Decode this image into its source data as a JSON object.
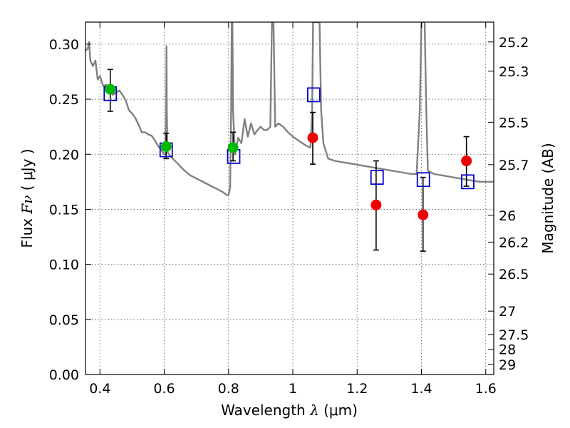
{
  "chart_data": {
    "type": "scatter",
    "xlabel": "Wavelength",
    "xlabel_symbol": "λ",
    "xlabel_unit": "(μm)",
    "ylabel": "Flux",
    "ylabel_symbol": "Fν",
    "ylabel_unit": "( μJy )",
    "y2label": "Magnitude (AB)",
    "xlim": [
      0.355,
      1.625
    ],
    "ylim": [
      0.0,
      0.32
    ],
    "grid": true,
    "x_ticks": [
      {
        "value": 0.4,
        "label": "0.4"
      },
      {
        "value": 0.6,
        "label": "0.6"
      },
      {
        "value": 0.8,
        "label": "0.8"
      },
      {
        "value": 1.0,
        "label": "1"
      },
      {
        "value": 1.2,
        "label": "1.2"
      },
      {
        "value": 1.4,
        "label": "1.4"
      },
      {
        "value": 1.6,
        "label": "1.6"
      }
    ],
    "y_ticks": [
      {
        "value": 0.0,
        "label": "0.00"
      },
      {
        "value": 0.05,
        "label": "0.05"
      },
      {
        "value": 0.1,
        "label": "0.10"
      },
      {
        "value": 0.15,
        "label": "0.15"
      },
      {
        "value": 0.2,
        "label": "0.20"
      },
      {
        "value": 0.25,
        "label": "0.25"
      },
      {
        "value": 0.3,
        "label": "0.30"
      }
    ],
    "y2_ticks": [
      {
        "value": 25.2,
        "label": "25.2"
      },
      {
        "value": 25.3,
        "label": "25.3"
      },
      {
        "value": 25.5,
        "label": "25.5"
      },
      {
        "value": 25.7,
        "label": "25.7"
      },
      {
        "value": 26,
        "label": "26"
      },
      {
        "value": 26.2,
        "label": "26.2"
      },
      {
        "value": 26.5,
        "label": "26.5"
      },
      {
        "value": 27,
        "label": "27"
      },
      {
        "value": 27.5,
        "label": "27.5"
      },
      {
        "value": 28,
        "label": "28"
      },
      {
        "value": 29,
        "label": "29"
      }
    ],
    "sed_model": {
      "name": "model SED",
      "color": "#808080",
      "points": [
        [
          0.355,
          0.294
        ],
        [
          0.362,
          0.296
        ],
        [
          0.366,
          0.302
        ],
        [
          0.37,
          0.285
        ],
        [
          0.378,
          0.28
        ],
        [
          0.386,
          0.285
        ],
        [
          0.393,
          0.268
        ],
        [
          0.4,
          0.271
        ],
        [
          0.41,
          0.262
        ],
        [
          0.42,
          0.263
        ],
        [
          0.43,
          0.258
        ],
        [
          0.44,
          0.254
        ],
        [
          0.45,
          0.256
        ],
        [
          0.46,
          0.258
        ],
        [
          0.47,
          0.254
        ],
        [
          0.48,
          0.249
        ],
        [
          0.49,
          0.24
        ],
        [
          0.5,
          0.237
        ],
        [
          0.51,
          0.233
        ],
        [
          0.52,
          0.227
        ],
        [
          0.53,
          0.22
        ],
        [
          0.54,
          0.22
        ],
        [
          0.55,
          0.218
        ],
        [
          0.56,
          0.217
        ],
        [
          0.57,
          0.213
        ],
        [
          0.58,
          0.208
        ],
        [
          0.59,
          0.204
        ],
        [
          0.6,
          0.2
        ],
        [
          0.604,
          0.2
        ],
        [
          0.606,
          0.24
        ],
        [
          0.607,
          0.298
        ],
        [
          0.608,
          0.24
        ],
        [
          0.61,
          0.202
        ],
        [
          0.62,
          0.198
        ],
        [
          0.64,
          0.192
        ],
        [
          0.66,
          0.186
        ],
        [
          0.68,
          0.181
        ],
        [
          0.7,
          0.178
        ],
        [
          0.72,
          0.175
        ],
        [
          0.74,
          0.172
        ],
        [
          0.76,
          0.169
        ],
        [
          0.78,
          0.166
        ],
        [
          0.795,
          0.163
        ],
        [
          0.8,
          0.163
        ],
        [
          0.805,
          0.17
        ],
        [
          0.808,
          0.24
        ],
        [
          0.81,
          0.32
        ],
        [
          0.812,
          0.32
        ],
        [
          0.814,
          0.24
        ],
        [
          0.82,
          0.2
        ],
        [
          0.83,
          0.215
        ],
        [
          0.84,
          0.21
        ],
        [
          0.85,
          0.232
        ],
        [
          0.86,
          0.216
        ],
        [
          0.87,
          0.228
        ],
        [
          0.88,
          0.218
        ],
        [
          0.89,
          0.222
        ],
        [
          0.9,
          0.225
        ],
        [
          0.91,
          0.222
        ],
        [
          0.92,
          0.222
        ],
        [
          0.93,
          0.225
        ],
        [
          0.935,
          0.32
        ],
        [
          0.94,
          0.32
        ],
        [
          0.945,
          0.225
        ],
        [
          0.955,
          0.228
        ],
        [
          0.97,
          0.225
        ],
        [
          0.985,
          0.22
        ],
        [
          1.0,
          0.216
        ],
        [
          1.02,
          0.212
        ],
        [
          1.04,
          0.208
        ],
        [
          1.055,
          0.206
        ],
        [
          1.06,
          0.24
        ],
        [
          1.063,
          0.32
        ],
        [
          1.083,
          0.32
        ],
        [
          1.088,
          0.24
        ],
        [
          1.095,
          0.21
        ],
        [
          1.11,
          0.196
        ],
        [
          1.13,
          0.194
        ],
        [
          1.15,
          0.193
        ],
        [
          1.17,
          0.192
        ],
        [
          1.19,
          0.191
        ],
        [
          1.21,
          0.19
        ],
        [
          1.23,
          0.189
        ],
        [
          1.25,
          0.188
        ],
        [
          1.27,
          0.187
        ],
        [
          1.29,
          0.186
        ],
        [
          1.31,
          0.185
        ],
        [
          1.33,
          0.184
        ],
        [
          1.35,
          0.183
        ],
        [
          1.37,
          0.182
        ],
        [
          1.385,
          0.182
        ],
        [
          1.395,
          0.24
        ],
        [
          1.4,
          0.32
        ],
        [
          1.41,
          0.32
        ],
        [
          1.415,
          0.24
        ],
        [
          1.42,
          0.185
        ],
        [
          1.44,
          0.182
        ],
        [
          1.46,
          0.181
        ],
        [
          1.48,
          0.18
        ],
        [
          1.5,
          0.179
        ],
        [
          1.52,
          0.178
        ],
        [
          1.54,
          0.177
        ],
        [
          1.56,
          0.176
        ],
        [
          1.58,
          0.175
        ],
        [
          1.6,
          0.175
        ],
        [
          1.625,
          0.175
        ]
      ]
    },
    "model_fluxes": {
      "name": "model band flux",
      "color": "#0000cc",
      "x": [
        0.432,
        0.606,
        0.816,
        1.065,
        1.262,
        1.406,
        1.544
      ],
      "y": [
        0.255,
        0.204,
        0.198,
        0.254,
        0.179,
        0.177,
        0.175
      ]
    },
    "observed": [
      {
        "x": 0.432,
        "y": 0.259,
        "err_low": 0.239,
        "err_high": 0.277,
        "color": "#00bb00"
      },
      {
        "x": 0.606,
        "y": 0.207,
        "err_low": 0.196,
        "err_high": 0.219,
        "color": "#00bb00"
      },
      {
        "x": 0.814,
        "y": 0.206,
        "err_low": 0.194,
        "err_high": 0.22,
        "color": "#00bb00"
      },
      {
        "x": 1.062,
        "y": 0.215,
        "err_low": 0.191,
        "err_high": 0.238,
        "color": "#ee0000"
      },
      {
        "x": 1.259,
        "y": 0.154,
        "err_low": 0.113,
        "err_high": 0.194,
        "color": "#ee0000"
      },
      {
        "x": 1.405,
        "y": 0.145,
        "err_low": 0.112,
        "err_high": 0.179,
        "color": "#ee0000"
      },
      {
        "x": 1.54,
        "y": 0.194,
        "err_low": 0.171,
        "err_high": 0.216,
        "color": "#ee0000"
      }
    ]
  }
}
